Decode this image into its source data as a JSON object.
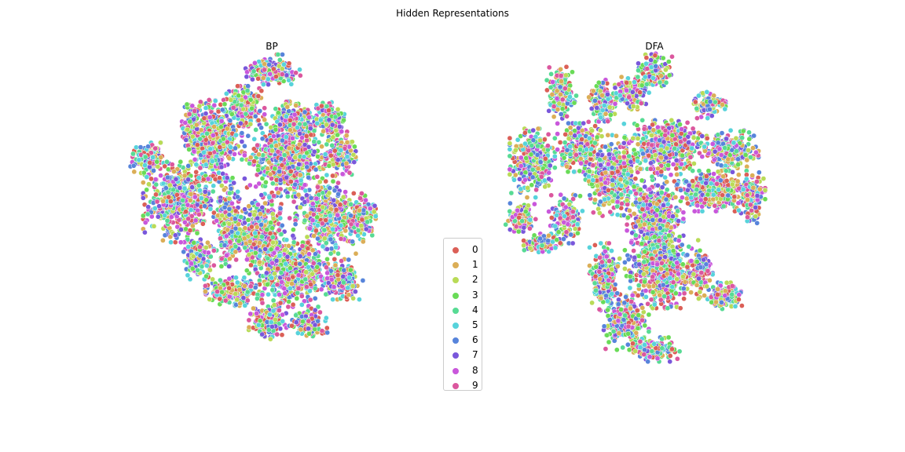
{
  "title": "Hidden Representations",
  "colors": [
    "#db5f57",
    "#dbae57",
    "#b9db57",
    "#69db57",
    "#57db94",
    "#57d3db",
    "#5784db",
    "#7957db",
    "#c957db",
    "#db579e"
  ],
  "legend": [
    "0",
    "1",
    "2",
    "3",
    "4",
    "5",
    "6",
    "7",
    "8",
    "9"
  ],
  "chart_data": [
    {
      "type": "scatter",
      "title": "BP",
      "xlabel": "",
      "ylabel": "",
      "grid": false,
      "axes_visible": false,
      "legend_placement": "center",
      "clusters": [
        {
          "center": [
            0.0,
            1.0
          ],
          "spread": [
            0.15,
            0.08
          ],
          "count": 160
        },
        {
          "center": [
            -0.18,
            0.77
          ],
          "spread": [
            0.1,
            0.1
          ],
          "count": 200
        },
        {
          "center": [
            0.15,
            0.67
          ],
          "spread": [
            0.12,
            0.1
          ],
          "count": 240
        },
        {
          "center": [
            0.4,
            0.68
          ],
          "spread": [
            0.09,
            0.1
          ],
          "count": 170
        },
        {
          "center": [
            -0.55,
            0.66
          ],
          "spread": [
            0.05,
            0.12
          ],
          "count": 130
        },
        {
          "center": [
            -0.4,
            0.55
          ],
          "spread": [
            0.15,
            0.2
          ],
          "count": 480
        },
        {
          "center": [
            -0.85,
            0.43
          ],
          "spread": [
            0.09,
            0.08
          ],
          "count": 160
        },
        {
          "center": [
            0.1,
            0.42
          ],
          "spread": [
            0.22,
            0.18
          ],
          "count": 620
        },
        {
          "center": [
            0.47,
            0.45
          ],
          "spread": [
            0.08,
            0.1
          ],
          "count": 150
        },
        {
          "center": [
            -0.62,
            0.15
          ],
          "spread": [
            0.2,
            0.2
          ],
          "count": 560
        },
        {
          "center": [
            -0.3,
            0.02
          ],
          "spread": [
            0.06,
            0.22
          ],
          "count": 230
        },
        {
          "center": [
            0.37,
            0.05
          ],
          "spread": [
            0.16,
            0.18
          ],
          "count": 420
        },
        {
          "center": [
            0.62,
            0.05
          ],
          "spread": [
            0.07,
            0.12
          ],
          "count": 160
        },
        {
          "center": [
            -0.07,
            -0.05
          ],
          "spread": [
            0.17,
            0.2
          ],
          "count": 450
        },
        {
          "center": [
            -0.5,
            -0.22
          ],
          "spread": [
            0.08,
            0.1
          ],
          "count": 150
        },
        {
          "center": [
            0.15,
            -0.32
          ],
          "spread": [
            0.18,
            0.16
          ],
          "count": 560
        },
        {
          "center": [
            0.48,
            -0.35
          ],
          "spread": [
            0.11,
            0.1
          ],
          "count": 200
        },
        {
          "center": [
            -0.26,
            -0.43
          ],
          "spread": [
            0.15,
            0.07
          ],
          "count": 220
        },
        {
          "center": [
            -0.03,
            -0.62
          ],
          "spread": [
            0.1,
            0.09
          ],
          "count": 170
        },
        {
          "center": [
            0.25,
            -0.63
          ],
          "spread": [
            0.1,
            0.07
          ],
          "count": 150
        }
      ]
    },
    {
      "type": "scatter",
      "title": "DFA",
      "xlabel": "",
      "ylabel": "",
      "grid": false,
      "axes_visible": false,
      "clusters": [
        {
          "center": [
            0.0,
            1.0
          ],
          "spread": [
            0.09,
            0.08
          ],
          "count": 130
        },
        {
          "center": [
            -0.65,
            0.85
          ],
          "spread": [
            0.08,
            0.13
          ],
          "count": 170
        },
        {
          "center": [
            -0.37,
            0.78
          ],
          "spread": [
            0.07,
            0.13
          ],
          "count": 150
        },
        {
          "center": [
            -0.16,
            0.85
          ],
          "spread": [
            0.09,
            0.08
          ],
          "count": 140
        },
        {
          "center": [
            0.37,
            0.78
          ],
          "spread": [
            0.09,
            0.07
          ],
          "count": 120
        },
        {
          "center": [
            -0.85,
            0.4
          ],
          "spread": [
            0.12,
            0.17
          ],
          "count": 320
        },
        {
          "center": [
            -0.52,
            0.5
          ],
          "spread": [
            0.12,
            0.12
          ],
          "count": 250
        },
        {
          "center": [
            -0.3,
            0.32
          ],
          "spread": [
            0.14,
            0.2
          ],
          "count": 420
        },
        {
          "center": [
            0.07,
            0.52
          ],
          "spread": [
            0.22,
            0.12
          ],
          "count": 500
        },
        {
          "center": [
            0.52,
            0.48
          ],
          "spread": [
            0.15,
            0.1
          ],
          "count": 280
        },
        {
          "center": [
            -0.93,
            0.05
          ],
          "spread": [
            0.08,
            0.07
          ],
          "count": 130
        },
        {
          "center": [
            -0.62,
            0.04
          ],
          "spread": [
            0.09,
            0.12
          ],
          "count": 150
        },
        {
          "center": [
            0.38,
            0.22
          ],
          "spread": [
            0.2,
            0.1
          ],
          "count": 400
        },
        {
          "center": [
            0.67,
            0.18
          ],
          "spread": [
            0.07,
            0.13
          ],
          "count": 140
        },
        {
          "center": [
            0.0,
            0.05
          ],
          "spread": [
            0.15,
            0.24
          ],
          "count": 500
        },
        {
          "center": [
            -0.78,
            -0.12
          ],
          "spread": [
            0.1,
            0.05
          ],
          "count": 110
        },
        {
          "center": [
            -0.35,
            -0.35
          ],
          "spread": [
            0.08,
            0.18
          ],
          "count": 200
        },
        {
          "center": [
            0.05,
            -0.3
          ],
          "spread": [
            0.2,
            0.18
          ],
          "count": 520
        },
        {
          "center": [
            0.32,
            -0.3
          ],
          "spread": [
            0.06,
            0.1
          ],
          "count": 120
        },
        {
          "center": [
            0.47,
            -0.46
          ],
          "spread": [
            0.1,
            0.07
          ],
          "count": 160
        },
        {
          "center": [
            -0.2,
            -0.62
          ],
          "spread": [
            0.12,
            0.14
          ],
          "count": 260
        },
        {
          "center": [
            0.0,
            -0.8
          ],
          "spread": [
            0.13,
            0.06
          ],
          "count": 150
        }
      ]
    }
  ]
}
